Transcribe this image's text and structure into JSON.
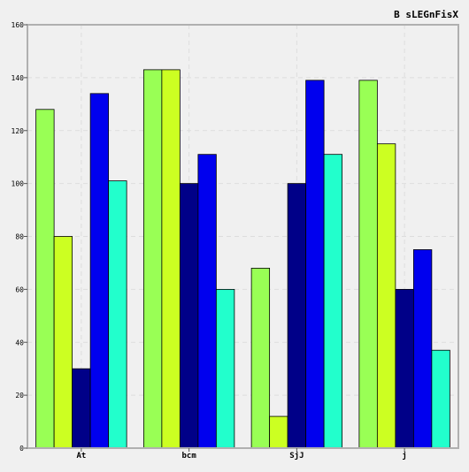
{
  "chart_data": {
    "type": "bar",
    "title": "B sLEGnFisX",
    "xlabel": "",
    "ylabel": "",
    "categories": [
      "At",
      "bcm",
      "SjJ",
      "j"
    ],
    "ylim": [
      0,
      160
    ],
    "yticks": [
      0,
      20,
      40,
      60,
      80,
      100,
      120,
      140,
      160
    ],
    "grid": true,
    "legend": "none",
    "series": [
      {
        "color": "#99ff55",
        "values": [
          128,
          143,
          68,
          139
        ]
      },
      {
        "color": "#ccff22",
        "values": [
          80,
          143,
          12,
          115
        ]
      },
      {
        "color": "#000088",
        "values": [
          30,
          100,
          100,
          60
        ]
      },
      {
        "color": "#0000ee",
        "values": [
          134,
          111,
          139,
          75
        ]
      },
      {
        "color": "#22ffcc",
        "values": [
          101,
          60,
          111,
          37
        ]
      }
    ]
  },
  "colors": {
    "background": "#f0f0f0",
    "plot_background": "#f0f0f0",
    "frame": "#b0b0b0",
    "grid": "#dddddd",
    "bar_edge": "#000000",
    "text": "#000000"
  }
}
